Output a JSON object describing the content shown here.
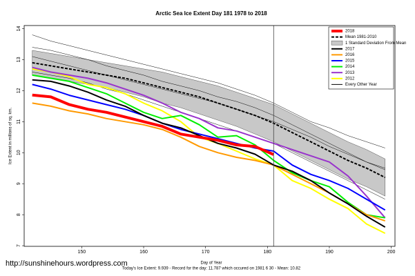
{
  "chart_data": {
    "type": "line",
    "title": "Arctic Sea Ice Extent Day 181 1978 to 2018",
    "x_label": "Day of Year",
    "y_label": "Ice Extent in millions of sq. km.",
    "footer": "Today's Ice Extent: 9.939  - Record for the day: 11.787 which occured on 1981 6 30  - Mean: 10.82",
    "watermark": "http://sunshinehours.wordpress.com",
    "marker_x": 181,
    "xlim": [
      140.7,
      200.6
    ],
    "ylim": [
      6.98,
      14.1
    ],
    "xticks": [
      150,
      160,
      170,
      180,
      190,
      200
    ],
    "yticks": [
      7,
      8,
      9,
      10,
      11,
      12,
      13,
      14
    ],
    "legend": "top-right",
    "x": [
      142,
      145,
      148,
      151,
      154,
      157,
      160,
      163,
      166,
      169,
      172,
      175,
      178,
      181,
      184,
      187,
      190,
      193,
      196,
      199
    ],
    "series": [
      {
        "name": "2018",
        "color": "#ff0000",
        "style": "thick",
        "values": [
          11.86,
          11.8,
          11.55,
          11.4,
          11.3,
          11.15,
          11.0,
          10.85,
          10.6,
          10.5,
          10.4,
          10.25,
          10.2,
          9.94,
          null,
          null,
          null,
          null,
          null,
          null
        ]
      },
      {
        "name": "Mean 1981-2010",
        "color": "#000000",
        "style": "dashed",
        "values": [
          12.9,
          12.8,
          12.7,
          12.6,
          12.5,
          12.4,
          12.25,
          12.1,
          11.95,
          11.8,
          11.6,
          11.4,
          11.2,
          10.95,
          10.65,
          10.35,
          10.05,
          9.75,
          9.5,
          9.2
        ]
      },
      {
        "name": "1 Standard Deviation From Mean",
        "color": "#c8c8c8",
        "style": "band",
        "lower": [
          12.5,
          12.4,
          12.3,
          12.2,
          12.1,
          11.95,
          11.8,
          11.6,
          11.45,
          11.25,
          11.05,
          10.85,
          10.6,
          10.35,
          10.05,
          9.75,
          9.45,
          9.15,
          8.9,
          8.6
        ],
        "upper": [
          13.3,
          13.2,
          13.1,
          13.0,
          12.9,
          12.8,
          12.7,
          12.6,
          12.45,
          12.3,
          12.15,
          11.95,
          11.75,
          11.55,
          11.25,
          10.95,
          10.65,
          10.35,
          10.1,
          9.8
        ]
      },
      {
        "name": "2017",
        "color": "#000000",
        "style": "normal",
        "values": [
          12.35,
          12.3,
          12.15,
          11.95,
          11.7,
          11.5,
          11.2,
          10.95,
          10.8,
          10.55,
          10.3,
          10.15,
          9.95,
          9.6,
          9.4,
          9.1,
          8.7,
          8.35,
          7.95,
          7.6
        ]
      },
      {
        "name": "2016",
        "color": "#ff9900",
        "style": "normal",
        "values": [
          11.6,
          11.5,
          11.35,
          11.25,
          11.1,
          11.0,
          10.9,
          10.75,
          10.5,
          10.2,
          10.0,
          9.85,
          9.75,
          9.6,
          9.3,
          9.0,
          8.7,
          8.35,
          8.0,
          7.8
        ]
      },
      {
        "name": "2015",
        "color": "#0000ff",
        "style": "normal",
        "values": [
          12.2,
          12.05,
          11.85,
          11.7,
          11.55,
          11.4,
          11.2,
          10.95,
          10.75,
          10.6,
          10.45,
          10.3,
          10.15,
          10.05,
          9.6,
          9.3,
          9.1,
          8.85,
          8.5,
          8.15
        ]
      },
      {
        "name": "2014",
        "color": "#00ee00",
        "style": "normal",
        "values": [
          12.5,
          12.4,
          12.3,
          12.1,
          11.9,
          11.6,
          11.3,
          11.1,
          11.2,
          10.9,
          10.5,
          10.55,
          10.25,
          9.75,
          9.35,
          9.1,
          8.9,
          8.4,
          8.0,
          7.9
        ]
      },
      {
        "name": "2013",
        "color": "#9933cc",
        "style": "normal",
        "values": [
          12.75,
          12.6,
          12.5,
          12.4,
          12.25,
          12.05,
          11.85,
          11.6,
          11.3,
          11.1,
          10.8,
          10.7,
          10.5,
          10.3,
          10.1,
          9.9,
          9.7,
          9.25,
          8.6,
          7.9
        ]
      },
      {
        "name": "2012",
        "color": "#ffff00",
        "style": "normal",
        "values": [
          12.7,
          12.6,
          12.45,
          12.2,
          12.1,
          11.9,
          11.6,
          11.35,
          11.0,
          10.5,
          10.3,
          10.05,
          9.8,
          9.6,
          9.1,
          8.85,
          8.5,
          8.2,
          7.7,
          7.4
        ]
      },
      {
        "name": "Every Other Year",
        "color": "#000000",
        "style": "thin",
        "values": [
          13.8,
          13.6,
          13.45,
          13.3,
          13.15,
          13.0,
          12.85,
          12.7,
          12.55,
          12.4,
          12.25,
          12.05,
          11.85,
          11.6,
          11.3,
          11.0,
          10.8,
          10.55,
          10.35,
          10.15
        ]
      },
      {
        "color": "#000000",
        "style": "thin",
        "values": [
          13.4,
          13.3,
          13.15,
          13.0,
          12.8,
          12.65,
          12.5,
          12.3,
          12.15,
          12.0,
          11.8,
          11.65,
          11.45,
          11.2,
          10.9,
          10.6,
          10.3,
          10.0,
          9.7,
          9.45
        ]
      },
      {
        "color": "#000000",
        "style": "thin",
        "values": [
          13.1,
          12.95,
          12.8,
          12.65,
          12.5,
          12.35,
          12.2,
          12.05,
          11.9,
          11.75,
          11.6,
          11.4,
          11.2,
          11.0,
          10.75,
          10.5,
          10.2,
          9.95,
          9.7,
          9.5
        ]
      },
      {
        "color": "#000000",
        "style": "thin",
        "values": [
          12.6,
          12.5,
          12.4,
          12.25,
          12.05,
          11.9,
          11.7,
          11.5,
          11.3,
          11.1,
          10.9,
          10.7,
          10.5,
          10.3,
          10.0,
          9.7,
          9.4,
          9.1,
          8.8,
          8.5
        ]
      }
    ]
  }
}
